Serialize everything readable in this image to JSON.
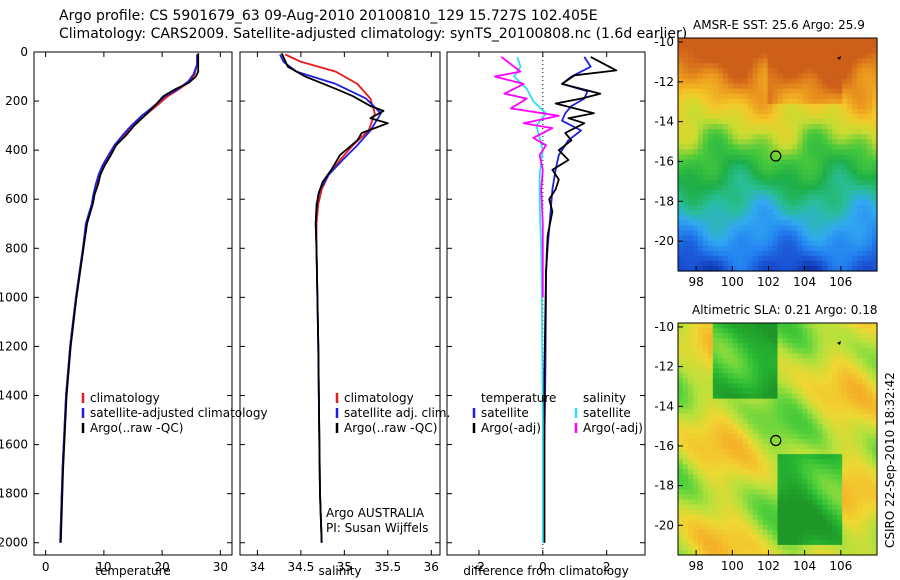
{
  "header": {
    "line1": "Argo profile: CS 5901679_63 09-Aug-2010 20100810_129 15.727S 102.405E",
    "line2": "Climatology: CARS2009. Satellite-adjusted climatology: synTS_20100808.nc (1.6d earlier)"
  },
  "stamp": "CSIRO 22-Sep-2010 18:32:42",
  "colors": {
    "climatology": "#e41a1c",
    "satellite": "#1f1fe0",
    "argo": "#000000",
    "satellite_sal": "#30e0f0",
    "argo_sal": "#ff00ff"
  },
  "depth_axis": {
    "ylim": [
      0,
      2050
    ],
    "ticks": [
      0,
      200,
      400,
      600,
      800,
      1000,
      1200,
      1400,
      1600,
      1800,
      2000
    ],
    "inverted": true
  },
  "chart_data": [
    {
      "type": "line",
      "id": "temperature",
      "xlabel": "temperature",
      "xlim": [
        -2,
        32
      ],
      "xticks": [
        0,
        10,
        20,
        30
      ],
      "legend": [
        "climatology",
        "satellite-adjusted climatology",
        "Argo(..raw -QC)"
      ],
      "series": [
        {
          "name": "climatology",
          "color": "climatology",
          "x": [
            26,
            26,
            25.6,
            24.8,
            23,
            21,
            19,
            17,
            15,
            13.5,
            12,
            11,
            10,
            9.3,
            8.8,
            8.3,
            8,
            7.5,
            7,
            6.4,
            5.8,
            5.2,
            4.7,
            4.2,
            3.5,
            2.9,
            2.5
          ],
          "y": [
            10,
            50,
            90,
            120,
            150,
            180,
            220,
            260,
            300,
            340,
            380,
            420,
            460,
            500,
            540,
            580,
            620,
            660,
            700,
            800,
            900,
            1000,
            1100,
            1200,
            1400,
            1700,
            2000
          ]
        },
        {
          "name": "satellite-adjusted climatology",
          "color": "satellite",
          "x": [
            26,
            26,
            25.4,
            24.5,
            22.8,
            20.5,
            18.6,
            16.5,
            14.7,
            13.2,
            11.8,
            10.8,
            9.8,
            9.1,
            8.6,
            8.2,
            7.9,
            7.4,
            6.9,
            6.4,
            5.8,
            5.2,
            4.7,
            4.2,
            3.5,
            2.9,
            2.5
          ],
          "y": [
            10,
            50,
            90,
            120,
            150,
            180,
            220,
            260,
            300,
            340,
            380,
            420,
            460,
            500,
            540,
            580,
            620,
            660,
            700,
            800,
            900,
            1000,
            1100,
            1200,
            1400,
            1700,
            2000
          ]
        },
        {
          "name": "Argo(..raw -QC)",
          "color": "argo",
          "x": [
            26.2,
            26.2,
            25.8,
            24.6,
            22.4,
            20.2,
            18.9,
            17.2,
            15.2,
            13.8,
            12.1,
            11.2,
            10.2,
            9.4,
            9,
            8.4,
            8.1,
            7.6,
            7.1,
            6.5,
            5.9,
            5.3,
            4.8,
            4.3,
            3.6,
            3,
            2.6
          ],
          "y": [
            5,
            80,
            100,
            125,
            150,
            180,
            215,
            255,
            300,
            340,
            380,
            420,
            460,
            500,
            540,
            580,
            620,
            660,
            700,
            800,
            900,
            1000,
            1100,
            1200,
            1400,
            1700,
            2000
          ]
        }
      ]
    },
    {
      "type": "line",
      "id": "salinity",
      "xlabel": "salinity",
      "xlim": [
        33.8,
        36.1
      ],
      "xticks": [
        34,
        34.5,
        35,
        35.5,
        36
      ],
      "legend": [
        "climatology",
        "satellite adj. clim.",
        "Argo(..raw -QC)"
      ],
      "annotation": [
        "Argo AUSTRALIA",
        "PI: Susan Wijffels"
      ],
      "series": [
        {
          "name": "climatology",
          "color": "climatology",
          "x": [
            34.32,
            34.5,
            34.9,
            35.15,
            35.3,
            35.35,
            35.28,
            35.1,
            34.95,
            34.82,
            34.74,
            34.7,
            34.68,
            34.68,
            34.69,
            34.7,
            34.71,
            34.72,
            34.74
          ],
          "y": [
            10,
            40,
            80,
            130,
            190,
            250,
            320,
            380,
            440,
            500,
            560,
            620,
            700,
            800,
            1000,
            1200,
            1500,
            1800,
            2000
          ]
        },
        {
          "name": "satellite adj. clim.",
          "color": "satellite",
          "x": [
            34.26,
            34.3,
            34.45,
            34.9,
            35.25,
            35.42,
            35.3,
            35.15,
            34.98,
            34.82,
            34.72,
            34.68,
            34.67,
            34.68,
            34.69,
            34.7,
            34.71,
            34.72,
            34.74
          ],
          "y": [
            10,
            40,
            80,
            130,
            190,
            250,
            320,
            380,
            440,
            500,
            560,
            620,
            700,
            800,
            1000,
            1200,
            1500,
            1800,
            2000
          ]
        },
        {
          "name": "Argo(..raw -QC)",
          "color": "argo",
          "x": [
            34.28,
            34.35,
            34.55,
            34.9,
            35.1,
            35.3,
            35.45,
            35.3,
            35.5,
            35.2,
            35.15,
            34.95,
            34.85,
            34.75,
            34.7,
            34.68,
            34.67,
            34.68,
            34.69,
            34.7,
            34.71,
            34.72,
            34.74
          ],
          "y": [
            5,
            60,
            100,
            150,
            180,
            220,
            240,
            270,
            290,
            330,
            360,
            420,
            480,
            530,
            580,
            640,
            700,
            800,
            1000,
            1200,
            1500,
            1800,
            2000
          ]
        }
      ]
    },
    {
      "type": "line",
      "id": "difference",
      "xlabel": "difference from climatology",
      "xlim": [
        -3,
        3.2
      ],
      "xticks": [
        -2,
        0,
        2
      ],
      "legend_temperature": {
        "title": "temperature",
        "items": [
          "satellite",
          "Argo(-adj)"
        ]
      },
      "legend_salinity": {
        "title": "salinity",
        "items": [
          "satellite",
          "Argo(-adj)"
        ]
      },
      "series": [
        {
          "name": "temperature satellite",
          "color": "satellite",
          "x": [
            1.3,
            1.5,
            0.9,
            0.6,
            1.4,
            1.3,
            0.9,
            0.7,
            0.6,
            1.2,
            0.8,
            0.5,
            0.4,
            0.3,
            0.25,
            0.2,
            0.15,
            0.1,
            0.1,
            0.08,
            0.05,
            0.05
          ],
          "y": [
            20,
            60,
            100,
            130,
            160,
            190,
            220,
            250,
            280,
            320,
            360,
            420,
            480,
            560,
            640,
            720,
            800,
            900,
            1000,
            1300,
            1600,
            2000
          ]
        },
        {
          "name": "temperature Argo(-adj)",
          "color": "argo",
          "x": [
            1.5,
            2.3,
            1.0,
            0.6,
            1.8,
            1.2,
            0.4,
            1.6,
            0.8,
            1.3,
            0.7,
            0.9,
            0.5,
            0.8,
            0.3,
            0.5,
            0.4,
            0.2,
            0.3,
            0.15,
            0.1,
            0.05,
            0.05
          ],
          "y": [
            20,
            75,
            95,
            130,
            170,
            190,
            210,
            250,
            270,
            290,
            330,
            360,
            400,
            440,
            480,
            520,
            560,
            600,
            650,
            750,
            900,
            1300,
            2000
          ]
        },
        {
          "name": "salinity satellite",
          "color": "satellite_sal",
          "x": [
            -0.8,
            -0.7,
            -0.9,
            -0.5,
            -0.3,
            0.1,
            -0.2,
            -0.1,
            0.0,
            -0.05,
            -0.1,
            -0.1,
            -0.08,
            -0.05,
            -0.03,
            0.0,
            0.0
          ],
          "y": [
            20,
            60,
            100,
            150,
            200,
            250,
            300,
            350,
            400,
            450,
            500,
            600,
            700,
            800,
            1000,
            1500,
            2000
          ]
        },
        {
          "name": "salinity Argo(-adj)",
          "color": "argo_sal",
          "x": [
            -1.3,
            -0.7,
            -1.5,
            -0.6,
            -1.2,
            -0.5,
            -1.0,
            0.5,
            -0.6,
            0.3,
            -0.3,
            0.1,
            -0.1,
            0.0,
            -0.05,
            0.0,
            0.0
          ],
          "y": [
            20,
            80,
            100,
            130,
            170,
            190,
            230,
            260,
            290,
            310,
            350,
            380,
            420,
            480,
            560,
            700,
            1000
          ]
        }
      ]
    },
    {
      "type": "heatmap",
      "id": "sst_map",
      "title": "AMSR-E SST: 25.6 Argo: 25.9",
      "xlim": [
        97,
        108
      ],
      "ylim": [
        -21.5,
        -9.8
      ],
      "xticks": [
        98,
        100,
        102,
        104,
        106
      ],
      "yticks": [
        -10,
        -12,
        -14,
        -16,
        -18,
        -20
      ],
      "marker": {
        "lon": 102.405,
        "lat": -15.727
      }
    },
    {
      "type": "heatmap",
      "id": "sla_map",
      "title": "Altimetric SLA: 0.21 Argo: 0.18",
      "xlim": [
        97,
        108
      ],
      "ylim": [
        -21.5,
        -9.8
      ],
      "xticks": [
        98,
        100,
        102,
        104,
        106
      ],
      "yticks": [
        -10,
        -12,
        -14,
        -16,
        -18,
        -20
      ],
      "marker": {
        "lon": 102.405,
        "lat": -15.727
      }
    }
  ]
}
